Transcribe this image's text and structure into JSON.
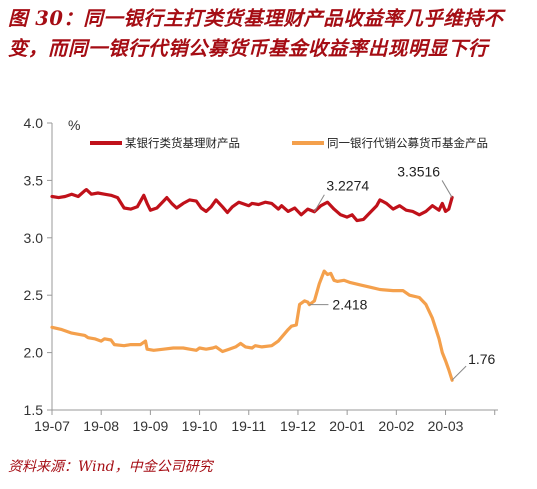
{
  "title": "图 30：同一银行主打类货基理财产品收益率几乎维持不变，而同一银行代销公募货币基金收益率出现明显下行",
  "source": "资料来源：Wind，中金公司研究",
  "colors": {
    "accent": "#a50d14",
    "series1": "#c0111a",
    "series2": "#f4a04c",
    "axis": "#999999"
  },
  "chart_data": {
    "type": "line",
    "title": "",
    "ylabel": "%",
    "xlabel": "",
    "ylim": [
      1.5,
      4.0
    ],
    "yticks": [
      "4.0",
      "3.5",
      "3.0",
      "2.5",
      "2.0",
      "1.5"
    ],
    "xticks": [
      "19-07",
      "19-08",
      "19-09",
      "19-10",
      "19-11",
      "19-12",
      "20-01",
      "20-02",
      "20-03"
    ],
    "legend": "top",
    "grid": false,
    "series": [
      {
        "name": "某银行类货基理财产品",
        "color": "#c0111a",
        "points": [
          [
            0.0,
            3.36
          ],
          [
            0.2,
            3.35
          ],
          [
            0.4,
            3.36
          ],
          [
            0.6,
            3.38
          ],
          [
            0.8,
            3.36
          ],
          [
            1.0,
            3.41
          ],
          [
            1.05,
            3.42
          ],
          [
            1.2,
            3.38
          ],
          [
            1.4,
            3.39
          ],
          [
            1.6,
            3.38
          ],
          [
            1.8,
            3.37
          ],
          [
            2.0,
            3.35
          ],
          [
            2.2,
            3.26
          ],
          [
            2.4,
            3.25
          ],
          [
            2.6,
            3.27
          ],
          [
            2.8,
            3.37
          ],
          [
            2.9,
            3.3
          ],
          [
            3.0,
            3.24
          ],
          [
            3.2,
            3.26
          ],
          [
            3.4,
            3.32
          ],
          [
            3.5,
            3.35
          ],
          [
            3.65,
            3.3
          ],
          [
            3.8,
            3.26
          ],
          [
            4.0,
            3.3
          ],
          [
            4.2,
            3.33
          ],
          [
            4.4,
            3.32
          ],
          [
            4.55,
            3.26
          ],
          [
            4.7,
            3.23
          ],
          [
            4.85,
            3.27
          ],
          [
            5.0,
            3.33
          ],
          [
            5.2,
            3.27
          ],
          [
            5.35,
            3.22
          ],
          [
            5.5,
            3.27
          ],
          [
            5.7,
            3.31
          ],
          [
            6.0,
            3.28
          ],
          [
            6.1,
            3.3
          ],
          [
            6.3,
            3.29
          ],
          [
            6.5,
            3.31
          ],
          [
            6.7,
            3.3
          ],
          [
            6.9,
            3.25
          ],
          [
            7.0,
            3.28
          ],
          [
            7.2,
            3.23
          ],
          [
            7.4,
            3.26
          ],
          [
            7.6,
            3.2
          ],
          [
            7.8,
            3.25
          ],
          [
            8.0,
            3.2274
          ],
          [
            8.2,
            3.28
          ],
          [
            8.4,
            3.31
          ],
          [
            8.6,
            3.25
          ],
          [
            8.8,
            3.2
          ],
          [
            9.0,
            3.18
          ],
          [
            9.15,
            3.2
          ],
          [
            9.3,
            3.15
          ],
          [
            9.5,
            3.16
          ],
          [
            9.7,
            3.22
          ],
          [
            9.9,
            3.28
          ],
          [
            10.0,
            3.33
          ],
          [
            10.2,
            3.3
          ],
          [
            10.4,
            3.25
          ],
          [
            10.6,
            3.28
          ],
          [
            10.8,
            3.24
          ],
          [
            11.0,
            3.23
          ],
          [
            11.2,
            3.2
          ],
          [
            11.4,
            3.23
          ],
          [
            11.6,
            3.28
          ],
          [
            11.8,
            3.24
          ],
          [
            11.9,
            3.3
          ],
          [
            12.0,
            3.23
          ],
          [
            12.1,
            3.25
          ],
          [
            12.2,
            3.3516
          ]
        ]
      },
      {
        "name": "同一银行代销公募货币基金产品",
        "color": "#f4a04c",
        "points": [
          [
            0.0,
            2.22
          ],
          [
            0.3,
            2.2
          ],
          [
            0.6,
            2.17
          ],
          [
            1.0,
            2.15
          ],
          [
            1.1,
            2.13
          ],
          [
            1.3,
            2.12
          ],
          [
            1.5,
            2.1
          ],
          [
            1.6,
            2.12
          ],
          [
            1.8,
            2.11
          ],
          [
            1.9,
            2.07
          ],
          [
            2.2,
            2.06
          ],
          [
            2.4,
            2.07
          ],
          [
            2.7,
            2.07
          ],
          [
            2.85,
            2.1
          ],
          [
            2.9,
            2.03
          ],
          [
            3.1,
            2.02
          ],
          [
            3.4,
            2.03
          ],
          [
            3.7,
            2.04
          ],
          [
            4.0,
            2.04
          ],
          [
            4.2,
            2.03
          ],
          [
            4.4,
            2.02
          ],
          [
            4.5,
            2.04
          ],
          [
            4.7,
            2.03
          ],
          [
            4.9,
            2.04
          ],
          [
            5.0,
            2.05
          ],
          [
            5.2,
            2.01
          ],
          [
            5.4,
            2.03
          ],
          [
            5.6,
            2.05
          ],
          [
            5.75,
            2.08
          ],
          [
            5.9,
            2.05
          ],
          [
            6.1,
            2.04
          ],
          [
            6.2,
            2.06
          ],
          [
            6.4,
            2.05
          ],
          [
            6.7,
            2.06
          ],
          [
            6.9,
            2.1
          ],
          [
            7.2,
            2.2
          ],
          [
            7.3,
            2.23
          ],
          [
            7.45,
            2.24
          ],
          [
            7.55,
            2.42
          ],
          [
            7.7,
            2.45
          ],
          [
            7.8,
            2.44
          ],
          [
            7.85,
            2.418
          ],
          [
            8.0,
            2.45
          ],
          [
            8.15,
            2.6
          ],
          [
            8.3,
            2.71
          ],
          [
            8.4,
            2.68
          ],
          [
            8.5,
            2.69
          ],
          [
            8.6,
            2.63
          ],
          [
            8.7,
            2.62
          ],
          [
            8.9,
            2.63
          ],
          [
            9.1,
            2.61
          ],
          [
            9.4,
            2.59
          ],
          [
            9.7,
            2.57
          ],
          [
            10.0,
            2.55
          ],
          [
            10.4,
            2.54
          ],
          [
            10.7,
            2.54
          ],
          [
            10.9,
            2.5
          ],
          [
            11.2,
            2.48
          ],
          [
            11.4,
            2.42
          ],
          [
            11.6,
            2.3
          ],
          [
            11.8,
            2.12
          ],
          [
            11.9,
            2.0
          ],
          [
            12.0,
            1.93
          ],
          [
            12.1,
            1.85
          ],
          [
            12.2,
            1.76
          ]
        ]
      }
    ],
    "annotations": [
      {
        "text": "3.2274",
        "series": 0,
        "x": 8.0,
        "y": 3.2274
      },
      {
        "text": "3.3516",
        "series": 0,
        "x": 12.2,
        "y": 3.3516
      },
      {
        "text": "2.418",
        "series": 1,
        "x": 7.85,
        "y": 2.418
      },
      {
        "text": "1.76",
        "series": 1,
        "x": 12.2,
        "y": 1.76
      }
    ]
  }
}
